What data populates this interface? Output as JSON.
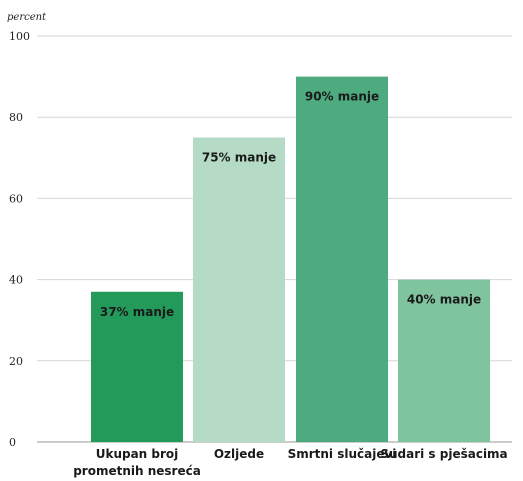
{
  "chart_data": {
    "type": "bar",
    "y_unit": "percent",
    "ylim": [
      0,
      100
    ],
    "y_ticks": [
      0,
      20,
      40,
      60,
      80,
      100
    ],
    "grid": true,
    "categories": [
      [
        "Ukupan broj",
        "prometnih nesreća"
      ],
      [
        "Ozljede"
      ],
      [
        "Smrtni slučajevi"
      ],
      [
        "Sudari s pješacima"
      ]
    ],
    "values": [
      37,
      75,
      90,
      40
    ],
    "data_labels": [
      "37% manje",
      "75% manje",
      "90% manje",
      "40% manje"
    ],
    "colors": [
      "#239a5a",
      "#b5dbc6",
      "#4dab7f",
      "#7fc39f"
    ]
  }
}
